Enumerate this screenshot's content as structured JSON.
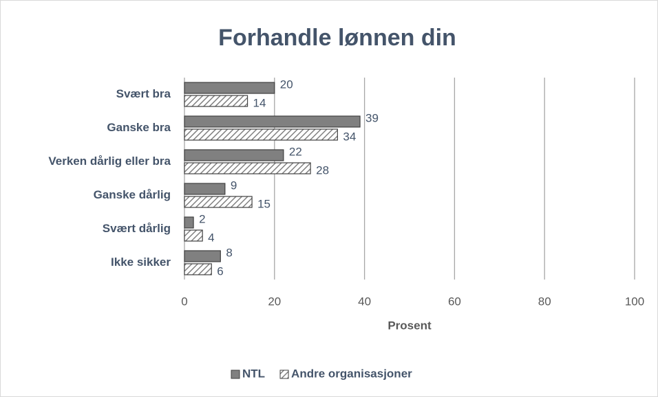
{
  "chart_data": {
    "type": "bar",
    "orientation": "horizontal",
    "title": "Forhandle lønnen din",
    "x_label": "Prosent",
    "categories": [
      "Svært bra",
      "Ganske bra",
      "Verken dårlig eller bra",
      "Ganske dårlig",
      "Svært dårlig",
      "Ikke sikker"
    ],
    "series": [
      {
        "name": "NTL",
        "color": "#808080",
        "pattern": "solid",
        "values": [
          20,
          39,
          22,
          9,
          2,
          8
        ]
      },
      {
        "name": "Andre organisasjoner",
        "color": "#808080",
        "pattern": "hatch",
        "values": [
          14,
          34,
          28,
          15,
          4,
          6
        ]
      }
    ],
    "xlim": [
      0,
      100
    ],
    "xticks": [
      0,
      20,
      40,
      60,
      80,
      100
    ],
    "grid": true,
    "legend": "bottom"
  }
}
